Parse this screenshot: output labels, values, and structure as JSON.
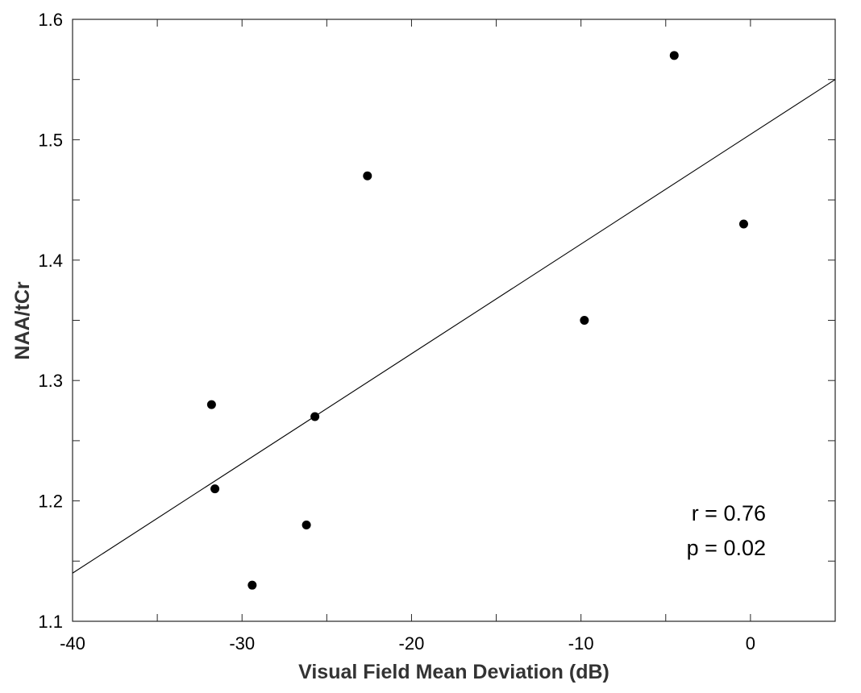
{
  "chart_data": {
    "type": "scatter",
    "xlabel": "Visual Field Mean Deviation (dB)",
    "ylabel": "NAA/tCr",
    "xlim": [
      -40,
      5
    ],
    "ylim": [
      1.1,
      1.6
    ],
    "x_ticks": [
      -40,
      -30,
      -20,
      -10,
      0
    ],
    "x_tick_labels": [
      "-40",
      "-30",
      "-20",
      "-10",
      "0"
    ],
    "x_minor_ticks": [
      -35,
      -25,
      -15,
      -5
    ],
    "y_ticks": [
      1.1,
      1.2,
      1.3,
      1.4,
      1.5,
      1.6
    ],
    "y_tick_labels": [
      "1.1",
      "1.2",
      "1.3",
      "1.4",
      "1.5",
      "1.6"
    ],
    "y_minor_ticks": [
      1.15,
      1.25,
      1.35,
      1.45,
      1.55
    ],
    "grid": false,
    "points": [
      {
        "x": -31.8,
        "y": 1.28
      },
      {
        "x": -31.6,
        "y": 1.21
      },
      {
        "x": -29.4,
        "y": 1.13
      },
      {
        "x": -26.2,
        "y": 1.18
      },
      {
        "x": -25.7,
        "y": 1.27
      },
      {
        "x": -22.6,
        "y": 1.47
      },
      {
        "x": -9.8,
        "y": 1.35
      },
      {
        "x": -4.5,
        "y": 1.57
      },
      {
        "x": -0.4,
        "y": 1.43
      }
    ],
    "fit_line": {
      "x": [
        -40,
        5
      ],
      "y": [
        1.14,
        1.55
      ]
    },
    "point_color": "#000000",
    "line_color": "#000000",
    "annotations": [
      "r = 0.76",
      "p = 0.02"
    ]
  }
}
